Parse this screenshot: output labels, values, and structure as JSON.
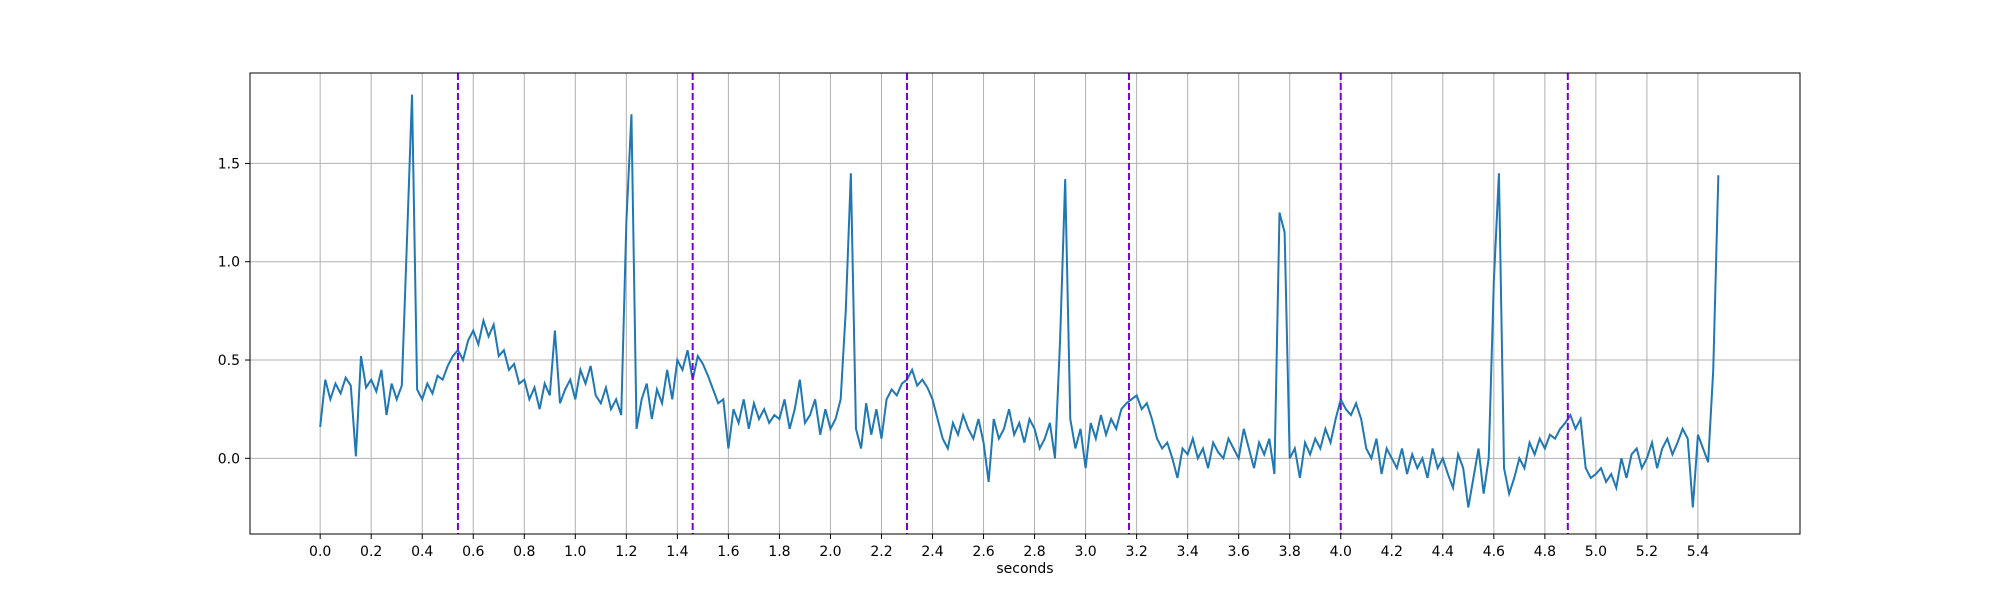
{
  "chart_data": {
    "type": "line",
    "xlabel": "seconds",
    "x": [
      0.0,
      0.02,
      0.04,
      0.06,
      0.08,
      0.1,
      0.12,
      0.14,
      0.16,
      0.18,
      0.2,
      0.22,
      0.24,
      0.26,
      0.28,
      0.3,
      0.32,
      0.34,
      0.36,
      0.38,
      0.4,
      0.42,
      0.44,
      0.46,
      0.48,
      0.5,
      0.52,
      0.54,
      0.56,
      0.58,
      0.6,
      0.62,
      0.64,
      0.66,
      0.68,
      0.7,
      0.72,
      0.74,
      0.76,
      0.78,
      0.8,
      0.82,
      0.84,
      0.86,
      0.88,
      0.9,
      0.92,
      0.94,
      0.96,
      0.98,
      1.0,
      1.02,
      1.04,
      1.06,
      1.08,
      1.1,
      1.12,
      1.14,
      1.16,
      1.18,
      1.2,
      1.22,
      1.24,
      1.26,
      1.28,
      1.3,
      1.32,
      1.34,
      1.36,
      1.38,
      1.4,
      1.42,
      1.44,
      1.46,
      1.48,
      1.5,
      1.52,
      1.54,
      1.56,
      1.58,
      1.6,
      1.62,
      1.64,
      1.66,
      1.68,
      1.7,
      1.72,
      1.74,
      1.76,
      1.78,
      1.8,
      1.82,
      1.84,
      1.86,
      1.88,
      1.9,
      1.92,
      1.94,
      1.96,
      1.98,
      2.0,
      2.02,
      2.04,
      2.06,
      2.08,
      2.1,
      2.12,
      2.14,
      2.16,
      2.18,
      2.2,
      2.22,
      2.24,
      2.26,
      2.28,
      2.3,
      2.32,
      2.34,
      2.36,
      2.38,
      2.4,
      2.42,
      2.44,
      2.46,
      2.48,
      2.5,
      2.52,
      2.54,
      2.56,
      2.58,
      2.6,
      2.62,
      2.64,
      2.66,
      2.68,
      2.7,
      2.72,
      2.74,
      2.76,
      2.78,
      2.8,
      2.82,
      2.84,
      2.86,
      2.88,
      2.9,
      2.92,
      2.94,
      2.96,
      2.98,
      3.0,
      3.02,
      3.04,
      3.06,
      3.08,
      3.1,
      3.12,
      3.14,
      3.16,
      3.18,
      3.2,
      3.22,
      3.24,
      3.26,
      3.28,
      3.3,
      3.32,
      3.34,
      3.36,
      3.38,
      3.4,
      3.42,
      3.44,
      3.46,
      3.48,
      3.5,
      3.52,
      3.54,
      3.56,
      3.58,
      3.6,
      3.62,
      3.64,
      3.66,
      3.68,
      3.7,
      3.72,
      3.74,
      3.76,
      3.78,
      3.8,
      3.82,
      3.84,
      3.86,
      3.88,
      3.9,
      3.92,
      3.94,
      3.96,
      3.98,
      4.0,
      4.02,
      4.04,
      4.06,
      4.08,
      4.1,
      4.12,
      4.14,
      4.16,
      4.18,
      4.2,
      4.22,
      4.24,
      4.26,
      4.28,
      4.3,
      4.32,
      4.34,
      4.36,
      4.38,
      4.4,
      4.42,
      4.44,
      4.46,
      4.48,
      4.5,
      4.52,
      4.54,
      4.56,
      4.58,
      4.6,
      4.62,
      4.64,
      4.66,
      4.68,
      4.7,
      4.72,
      4.74,
      4.76,
      4.78,
      4.8,
      4.82,
      4.84,
      4.86,
      4.88,
      4.9,
      4.92,
      4.94,
      4.96,
      4.98,
      5.0,
      5.02,
      5.04,
      5.06,
      5.08,
      5.1,
      5.12,
      5.14,
      5.16,
      5.18,
      5.2,
      5.22,
      5.24,
      5.26,
      5.28,
      5.3,
      5.32,
      5.34,
      5.36,
      5.38,
      5.4,
      5.42,
      5.44,
      5.46,
      5.48
    ],
    "series": [
      {
        "color": "#1f77b4",
        "values": [
          0.16,
          0.4,
          0.3,
          0.38,
          0.33,
          0.41,
          0.37,
          0.01,
          0.52,
          0.36,
          0.4,
          0.34,
          0.45,
          0.22,
          0.38,
          0.3,
          0.37,
          1.1,
          1.85,
          0.35,
          0.3,
          0.38,
          0.33,
          0.42,
          0.4,
          0.47,
          0.52,
          0.55,
          0.5,
          0.6,
          0.65,
          0.58,
          0.7,
          0.62,
          0.68,
          0.52,
          0.55,
          0.45,
          0.48,
          0.38,
          0.4,
          0.3,
          0.36,
          0.25,
          0.38,
          0.32,
          0.65,
          0.28,
          0.35,
          0.4,
          0.3,
          0.45,
          0.38,
          0.47,
          0.32,
          0.28,
          0.36,
          0.25,
          0.3,
          0.22,
          1.2,
          1.75,
          0.15,
          0.3,
          0.38,
          0.2,
          0.35,
          0.28,
          0.45,
          0.3,
          0.5,
          0.45,
          0.55,
          0.4,
          0.52,
          0.48,
          0.42,
          0.35,
          0.28,
          0.3,
          0.05,
          0.25,
          0.18,
          0.3,
          0.15,
          0.28,
          0.2,
          0.25,
          0.18,
          0.22,
          0.2,
          0.3,
          0.15,
          0.25,
          0.4,
          0.18,
          0.22,
          0.3,
          0.12,
          0.25,
          0.15,
          0.2,
          0.3,
          0.75,
          1.45,
          0.15,
          0.05,
          0.28,
          0.12,
          0.25,
          0.1,
          0.3,
          0.35,
          0.32,
          0.38,
          0.4,
          0.45,
          0.37,
          0.4,
          0.36,
          0.3,
          0.2,
          0.1,
          0.05,
          0.18,
          0.12,
          0.22,
          0.15,
          0.1,
          0.2,
          0.08,
          -0.12,
          0.2,
          0.1,
          0.15,
          0.25,
          0.12,
          0.18,
          0.08,
          0.2,
          0.15,
          0.05,
          0.1,
          0.18,
          0.0,
          0.6,
          1.42,
          0.2,
          0.05,
          0.15,
          -0.05,
          0.18,
          0.1,
          0.22,
          0.12,
          0.2,
          0.15,
          0.25,
          0.28,
          0.3,
          0.32,
          0.25,
          0.28,
          0.2,
          0.1,
          0.05,
          0.08,
          0.0,
          -0.1,
          0.05,
          0.02,
          0.1,
          0.0,
          0.05,
          -0.05,
          0.08,
          0.03,
          0.0,
          0.1,
          0.05,
          0.0,
          0.15,
          0.05,
          -0.05,
          0.08,
          0.02,
          0.1,
          -0.08,
          1.25,
          1.15,
          0.0,
          0.05,
          -0.1,
          0.08,
          0.02,
          0.1,
          0.05,
          0.15,
          0.08,
          0.2,
          0.3,
          0.25,
          0.22,
          0.28,
          0.2,
          0.05,
          0.0,
          0.1,
          -0.08,
          0.05,
          0.0,
          -0.05,
          0.05,
          -0.08,
          0.02,
          -0.05,
          0.0,
          -0.1,
          0.05,
          -0.05,
          0.0,
          -0.08,
          -0.15,
          0.02,
          -0.05,
          -0.25,
          -0.1,
          0.05,
          -0.18,
          0.0,
          0.9,
          1.45,
          -0.05,
          -0.18,
          -0.1,
          0.0,
          -0.05,
          0.08,
          0.02,
          0.1,
          0.05,
          0.12,
          0.1,
          0.15,
          0.18,
          0.22,
          0.15,
          0.2,
          -0.05,
          -0.1,
          -0.08,
          -0.05,
          -0.12,
          -0.08,
          -0.15,
          0.0,
          -0.1,
          0.02,
          0.05,
          -0.05,
          0.0,
          0.08,
          -0.05,
          0.05,
          0.1,
          0.02,
          0.08,
          0.15,
          0.1,
          -0.25,
          0.12,
          0.05,
          -0.02,
          0.45,
          1.44
        ]
      }
    ],
    "vlines": [
      0.54,
      1.46,
      2.3,
      3.17,
      4.0,
      4.89
    ],
    "vline_color": "#7b00d4",
    "xlim": [
      -0.275,
      5.8
    ],
    "ylim": [
      -0.385,
      1.96
    ],
    "xticks": [
      {
        "value": 0,
        "label": "0.0"
      },
      0.2,
      0.4,
      0.6,
      0.8,
      {
        "value": 1,
        "label": "1.0"
      },
      1.2,
      1.4,
      1.6,
      1.8,
      {
        "value": 2,
        "label": "2.0"
      },
      2.2,
      2.4,
      2.6,
      2.8,
      {
        "value": 3,
        "label": "3.0"
      },
      3.2,
      3.4,
      3.6,
      3.8,
      {
        "value": 4,
        "label": "4.0"
      },
      4.2,
      4.4,
      4.6,
      4.8,
      {
        "value": 5,
        "label": "5.0"
      },
      5.2,
      5.4
    ],
    "yticks": [
      {
        "value": 0,
        "label": "0.0"
      },
      0.5,
      {
        "value": 1,
        "label": "1.0"
      },
      1.5
    ],
    "grid": true
  }
}
